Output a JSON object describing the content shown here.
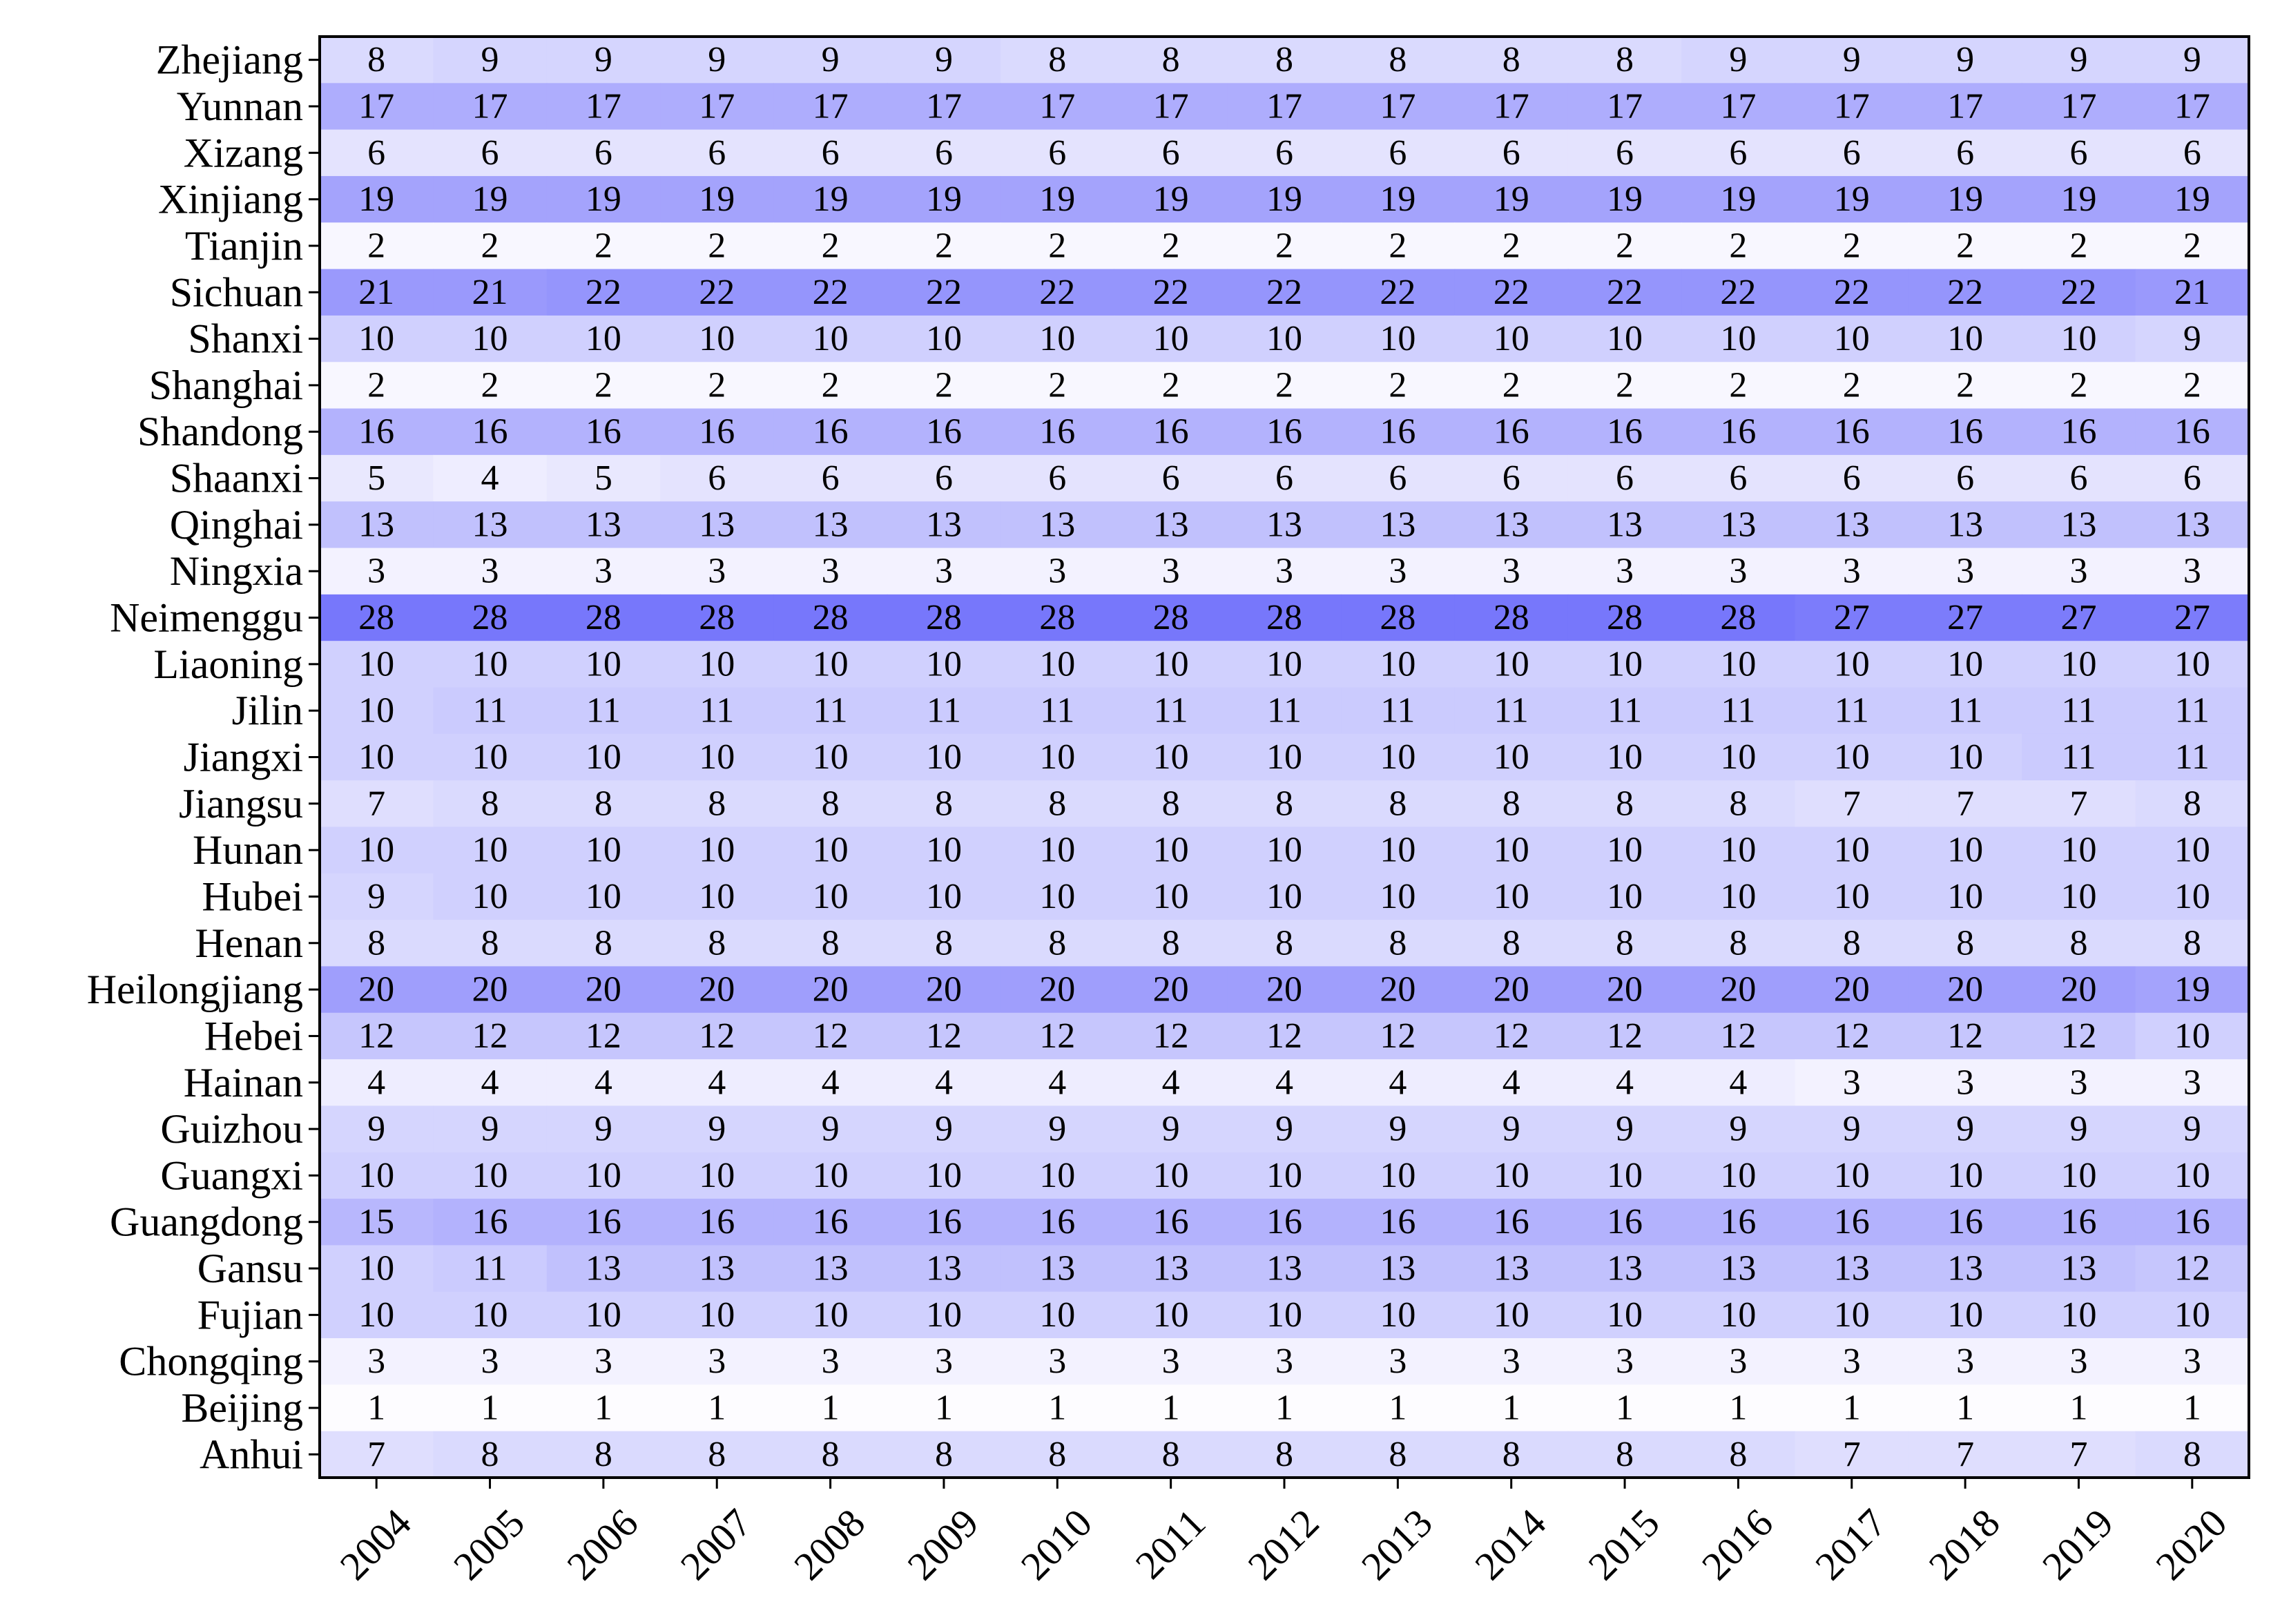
{
  "chart_data": {
    "type": "heatmap",
    "title": "",
    "xlabel": "",
    "ylabel": "",
    "x": [
      "2004",
      "2005",
      "2006",
      "2007",
      "2008",
      "2009",
      "2010",
      "2011",
      "2012",
      "2013",
      "2014",
      "2015",
      "2016",
      "2017",
      "2018",
      "2019",
      "2020"
    ],
    "y": [
      "Zhejiang",
      "Yunnan",
      "Xizang",
      "Xinjiang",
      "Tianjin",
      "Sichuan",
      "Shanxi",
      "Shanghai",
      "Shandong",
      "Shaanxi",
      "Qinghai",
      "Ningxia",
      "Neimenggu",
      "Liaoning",
      "Jilin",
      "Jiangxi",
      "Jiangsu",
      "Hunan",
      "Hubei",
      "Henan",
      "Heilongjiang",
      "Hebei",
      "Hainan",
      "Guizhou",
      "Guangxi",
      "Guangdong",
      "Gansu",
      "Fujian",
      "Chongqing",
      "Beijing",
      "Anhui"
    ],
    "values": [
      [
        8,
        9,
        9,
        9,
        9,
        9,
        8,
        8,
        8,
        8,
        8,
        8,
        9,
        9,
        9,
        9,
        9
      ],
      [
        17,
        17,
        17,
        17,
        17,
        17,
        17,
        17,
        17,
        17,
        17,
        17,
        17,
        17,
        17,
        17,
        17
      ],
      [
        6,
        6,
        6,
        6,
        6,
        6,
        6,
        6,
        6,
        6,
        6,
        6,
        6,
        6,
        6,
        6,
        6
      ],
      [
        19,
        19,
        19,
        19,
        19,
        19,
        19,
        19,
        19,
        19,
        19,
        19,
        19,
        19,
        19,
        19,
        19
      ],
      [
        2,
        2,
        2,
        2,
        2,
        2,
        2,
        2,
        2,
        2,
        2,
        2,
        2,
        2,
        2,
        2,
        2
      ],
      [
        21,
        21,
        22,
        22,
        22,
        22,
        22,
        22,
        22,
        22,
        22,
        22,
        22,
        22,
        22,
        22,
        21
      ],
      [
        10,
        10,
        10,
        10,
        10,
        10,
        10,
        10,
        10,
        10,
        10,
        10,
        10,
        10,
        10,
        10,
        9
      ],
      [
        2,
        2,
        2,
        2,
        2,
        2,
        2,
        2,
        2,
        2,
        2,
        2,
        2,
        2,
        2,
        2,
        2
      ],
      [
        16,
        16,
        16,
        16,
        16,
        16,
        16,
        16,
        16,
        16,
        16,
        16,
        16,
        16,
        16,
        16,
        16
      ],
      [
        5,
        4,
        5,
        6,
        6,
        6,
        6,
        6,
        6,
        6,
        6,
        6,
        6,
        6,
        6,
        6,
        6
      ],
      [
        13,
        13,
        13,
        13,
        13,
        13,
        13,
        13,
        13,
        13,
        13,
        13,
        13,
        13,
        13,
        13,
        13
      ],
      [
        3,
        3,
        3,
        3,
        3,
        3,
        3,
        3,
        3,
        3,
        3,
        3,
        3,
        3,
        3,
        3,
        3
      ],
      [
        28,
        28,
        28,
        28,
        28,
        28,
        28,
        28,
        28,
        28,
        28,
        28,
        28,
        27,
        27,
        27,
        27
      ],
      [
        10,
        10,
        10,
        10,
        10,
        10,
        10,
        10,
        10,
        10,
        10,
        10,
        10,
        10,
        10,
        10,
        10
      ],
      [
        10,
        11,
        11,
        11,
        11,
        11,
        11,
        11,
        11,
        11,
        11,
        11,
        11,
        11,
        11,
        11,
        11
      ],
      [
        10,
        10,
        10,
        10,
        10,
        10,
        10,
        10,
        10,
        10,
        10,
        10,
        10,
        10,
        10,
        11,
        11
      ],
      [
        7,
        8,
        8,
        8,
        8,
        8,
        8,
        8,
        8,
        8,
        8,
        8,
        8,
        7,
        7,
        7,
        8
      ],
      [
        10,
        10,
        10,
        10,
        10,
        10,
        10,
        10,
        10,
        10,
        10,
        10,
        10,
        10,
        10,
        10,
        10
      ],
      [
        9,
        10,
        10,
        10,
        10,
        10,
        10,
        10,
        10,
        10,
        10,
        10,
        10,
        10,
        10,
        10,
        10
      ],
      [
        8,
        8,
        8,
        8,
        8,
        8,
        8,
        8,
        8,
        8,
        8,
        8,
        8,
        8,
        8,
        8,
        8
      ],
      [
        20,
        20,
        20,
        20,
        20,
        20,
        20,
        20,
        20,
        20,
        20,
        20,
        20,
        20,
        20,
        20,
        19
      ],
      [
        12,
        12,
        12,
        12,
        12,
        12,
        12,
        12,
        12,
        12,
        12,
        12,
        12,
        12,
        12,
        12,
        10
      ],
      [
        4,
        4,
        4,
        4,
        4,
        4,
        4,
        4,
        4,
        4,
        4,
        4,
        4,
        3,
        3,
        3,
        3
      ],
      [
        9,
        9,
        9,
        9,
        9,
        9,
        9,
        9,
        9,
        9,
        9,
        9,
        9,
        9,
        9,
        9,
        9
      ],
      [
        10,
        10,
        10,
        10,
        10,
        10,
        10,
        10,
        10,
        10,
        10,
        10,
        10,
        10,
        10,
        10,
        10
      ],
      [
        15,
        16,
        16,
        16,
        16,
        16,
        16,
        16,
        16,
        16,
        16,
        16,
        16,
        16,
        16,
        16,
        16
      ],
      [
        10,
        11,
        13,
        13,
        13,
        13,
        13,
        13,
        13,
        13,
        13,
        13,
        13,
        13,
        13,
        13,
        12
      ],
      [
        10,
        10,
        10,
        10,
        10,
        10,
        10,
        10,
        10,
        10,
        10,
        10,
        10,
        10,
        10,
        10,
        10
      ],
      [
        3,
        3,
        3,
        3,
        3,
        3,
        3,
        3,
        3,
        3,
        3,
        3,
        3,
        3,
        3,
        3,
        3
      ],
      [
        1,
        1,
        1,
        1,
        1,
        1,
        1,
        1,
        1,
        1,
        1,
        1,
        1,
        1,
        1,
        1,
        1
      ],
      [
        7,
        8,
        8,
        8,
        8,
        8,
        8,
        8,
        8,
        8,
        8,
        8,
        8,
        7,
        7,
        7,
        8
      ]
    ],
    "colorscale": [
      "#fdfcff",
      "#7777fb"
    ],
    "show_cell_labels": true,
    "grid": false,
    "legend": "none"
  }
}
